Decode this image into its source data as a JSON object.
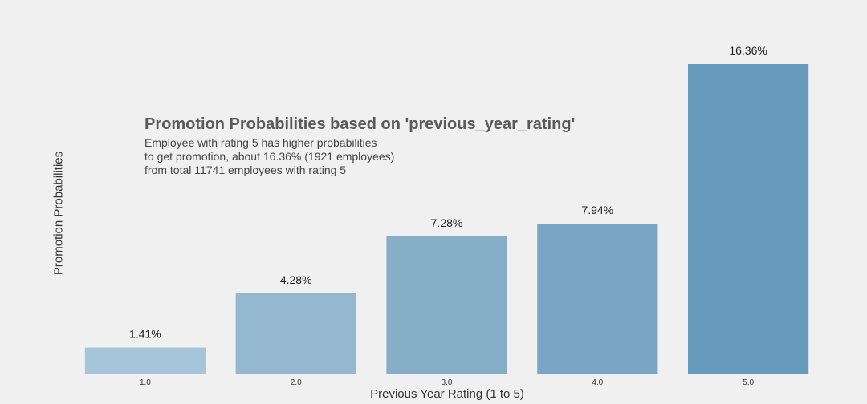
{
  "chart_data": {
    "type": "bar",
    "categories": [
      "1.0",
      "2.0",
      "3.0",
      "4.0",
      "5.0"
    ],
    "values": [
      1.41,
      4.28,
      7.28,
      7.94,
      16.36
    ],
    "value_labels": [
      "1.41%",
      "4.28%",
      "7.28%",
      "7.94%",
      "16.36%"
    ],
    "xlabel": "Previous Year Rating (1 to 5)",
    "ylabel": "Promotion Probabilities",
    "ylim": [
      0,
      16.36
    ],
    "grid": false,
    "legend": "none",
    "bar_colors": [
      "#a6c4da",
      "#95b8d1",
      "#86aec9",
      "#77a5c3",
      "#6699bc"
    ],
    "annotation": {
      "title": "Promotion Probabilities based on 'previous_year_rating'",
      "lines": [
        "Employee with rating 5 has higher probabilities",
        "to get promotion, about 16.36% (1921 employees)",
        "from total 11741 employees with rating 5"
      ]
    }
  }
}
